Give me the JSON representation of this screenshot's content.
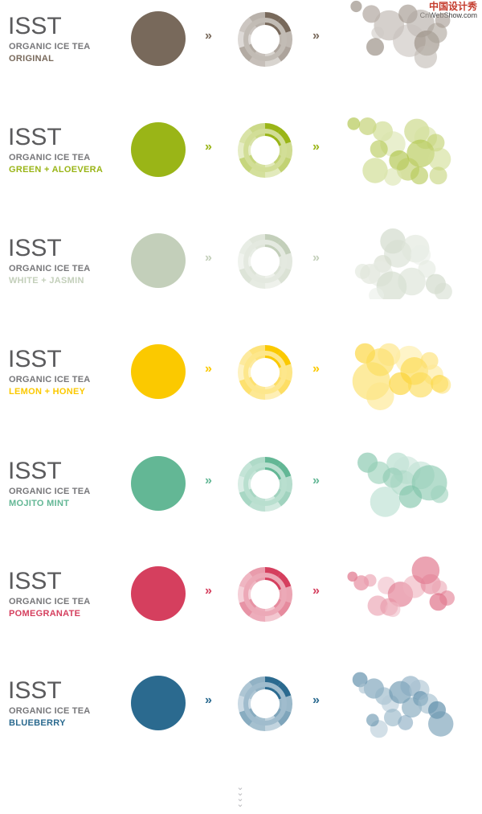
{
  "watermark": {
    "cn": "中国设计秀",
    "en": "CnWebShow.com"
  },
  "rows": [
    {
      "title": "ISST",
      "subtitle": "ORGANIC ICE TEA",
      "flavor": "ORIGINAL",
      "color": "#78695b",
      "arrow": "»"
    },
    {
      "title": "ISST",
      "subtitle": "ORGANIC ICE TEA",
      "flavor": "GREEN + ALOEVERA",
      "color": "#9ab517",
      "arrow": "»"
    },
    {
      "title": "ISST",
      "subtitle": "ORGANIC ICE TEA",
      "flavor": "WHITE + JASMIN",
      "color": "#c3cfba",
      "arrow": "»"
    },
    {
      "title": "ISST",
      "subtitle": "ORGANIC ICE TEA",
      "flavor": "LEMON + HONEY",
      "color": "#fbc900",
      "arrow": "»"
    },
    {
      "title": "ISST",
      "subtitle": "ORGANIC ICE TEA",
      "flavor": "MOJITO MINT",
      "color": "#63b795",
      "arrow": "»"
    },
    {
      "title": "ISST",
      "subtitle": "ORGANIC ICE TEA",
      "flavor": "POMEGRANATE",
      "color": "#d53f5e",
      "arrow": "»"
    },
    {
      "title": "ISST",
      "subtitle": "ORGANIC ICE TEA",
      "flavor": "BLUEBERRY",
      "color": "#2b6a8f",
      "arrow": "»"
    }
  ],
  "icons": {
    "scroll_down": "chevrons-down-icon"
  }
}
